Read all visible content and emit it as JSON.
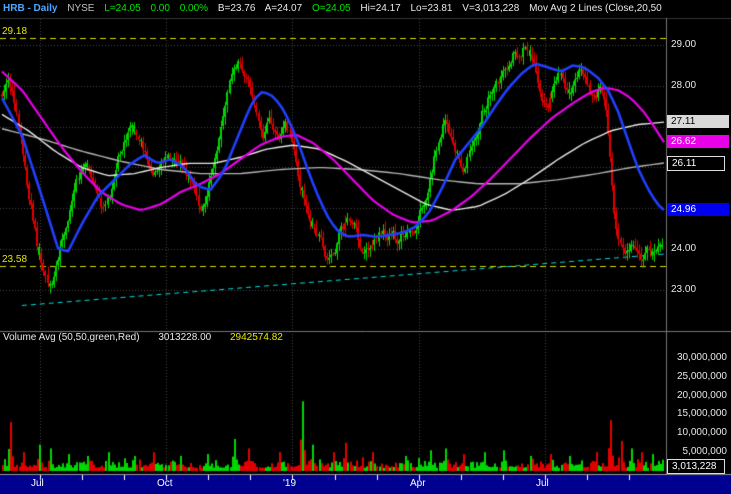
{
  "header": {
    "symbol": "HRB - Daily",
    "exchange": "NYSE",
    "last": "L=24.05",
    "change": "0.00",
    "change_pct": "0.00%",
    "bid": "B=23.76",
    "ask": "A=24.07",
    "open": "O=24.05",
    "high": "Hi=24.17",
    "low": "Lo=23.81",
    "volume": "V=3,013,228",
    "study": "Mov Avg 2 Lines (Close,20,50"
  },
  "colors": {
    "up": "#00d600",
    "down": "#e00000",
    "blue_ma": "#2040ff",
    "magenta_ma": "#e800e8",
    "white_ma_1": "#e8e8e8",
    "white_ma_2": "#b4b4b4",
    "level": "#d8d800",
    "trend": "#00dcdc",
    "grid": "#454545",
    "time_axis_bg": "#000090",
    "header_symbol": "#4da6ff",
    "header_green": "#00e600",
    "header_white": "#e8e8e8",
    "header_gray": "#c0c0c0",
    "yellow": "#e8e800"
  },
  "price_axis": {
    "tick_labels": [
      {
        "text": "29.00",
        "value": 29.0
      },
      {
        "text": "28.00",
        "value": 28.0
      },
      {
        "text": "24.00",
        "value": 24.0
      },
      {
        "text": "23.00",
        "value": 23.0
      }
    ],
    "badges": [
      {
        "name": "white-ma-1-value-badge",
        "text": "27.11",
        "value": 27.11,
        "style": "solid",
        "bg": "#d9d9d9",
        "fg": "#000000"
      },
      {
        "name": "magenta-ma-value-badge",
        "text": "26.62",
        "value": 26.62,
        "style": "solid",
        "bg": "#e800e8",
        "fg": "#ffffff"
      },
      {
        "name": "white-ma-2-value-badge",
        "text": "26.11",
        "value": 26.11,
        "style": "outline",
        "bg": "#000000",
        "fg": "#ffffff"
      },
      {
        "name": "blue-ma-value-badge",
        "text": "24.96",
        "value": 24.96,
        "style": "solid",
        "bg": "#0000f0",
        "fg": "#ffffff"
      }
    ]
  },
  "volume_axis": {
    "tick_labels": [
      {
        "text": "30,000,000",
        "value": 30000000
      },
      {
        "text": "25,000,000",
        "value": 25000000
      },
      {
        "text": "20,000,000",
        "value": 20000000
      },
      {
        "text": "15,000,000",
        "value": 15000000
      },
      {
        "text": "10,000,000",
        "value": 10000000
      },
      {
        "text": "5,000,000",
        "value": 5000000
      }
    ],
    "badge": {
      "text": "3,013,228",
      "value": 3013228
    }
  },
  "volume_header": {
    "name": "Volume Avg (50,50,green,Red)",
    "value1": "3013228.00",
    "value2": "2942574.82"
  },
  "time_axis": {
    "labels": [
      {
        "text": "Jul",
        "pos": 0.057
      },
      {
        "text": "Oct",
        "pos": 0.2479
      },
      {
        "text": "'19",
        "pos": 0.4387
      },
      {
        "text": "Apr",
        "pos": 0.6296
      },
      {
        "text": "Jul",
        "pos": 0.8204
      }
    ],
    "month_tick_positions": [
      0.057,
      0.1206,
      0.1842,
      0.2479,
      0.3115,
      0.3751,
      0.4387,
      0.5023,
      0.5659,
      0.6296,
      0.6932,
      0.7568,
      0.8204,
      0.884,
      0.9476
    ]
  },
  "chart_data": {
    "type": "candlestick",
    "symbol": "HRB",
    "timeframe": "Daily",
    "exchange": "NYSE",
    "bars": 320,
    "seed": 421,
    "last_close": 24.05,
    "price_range": [
      22.0,
      29.66
    ],
    "price_gridlines": [
      23,
      24,
      25,
      26,
      27,
      28,
      29
    ],
    "levels": {
      "resistance": {
        "label": "29.18",
        "value": 29.18
      },
      "support": {
        "label": "23.58",
        "value": 23.58
      }
    },
    "trendline": {
      "x1": 0.03,
      "y1": 22.62,
      "x2": 1.0,
      "y2": 23.88
    },
    "close_path": [
      [
        0.0,
        27.6
      ],
      [
        0.01,
        28.2
      ],
      [
        0.022,
        27.4
      ],
      [
        0.038,
        25.6
      ],
      [
        0.052,
        24.3
      ],
      [
        0.062,
        23.4
      ],
      [
        0.072,
        22.95
      ],
      [
        0.085,
        23.6
      ],
      [
        0.1,
        24.6
      ],
      [
        0.112,
        25.4
      ],
      [
        0.125,
        25.85
      ],
      [
        0.14,
        25.4
      ],
      [
        0.152,
        24.95
      ],
      [
        0.165,
        25.4
      ],
      [
        0.18,
        26.4
      ],
      [
        0.195,
        27.1
      ],
      [
        0.205,
        26.9
      ],
      [
        0.218,
        26.3
      ],
      [
        0.23,
        26.0
      ],
      [
        0.245,
        26.3
      ],
      [
        0.26,
        26.4
      ],
      [
        0.272,
        26.1
      ],
      [
        0.285,
        25.6
      ],
      [
        0.3,
        25.1
      ],
      [
        0.312,
        25.6
      ],
      [
        0.325,
        26.6
      ],
      [
        0.34,
        27.6
      ],
      [
        0.352,
        28.3
      ],
      [
        0.362,
        28.6
      ],
      [
        0.372,
        28.1
      ],
      [
        0.382,
        27.4
      ],
      [
        0.395,
        26.9
      ],
      [
        0.405,
        27.1
      ],
      [
        0.418,
        26.7
      ],
      [
        0.43,
        26.9
      ],
      [
        0.442,
        26.4
      ],
      [
        0.452,
        25.6
      ],
      [
        0.462,
        24.9
      ],
      [
        0.475,
        24.3
      ],
      [
        0.488,
        23.9
      ],
      [
        0.5,
        23.7
      ],
      [
        0.512,
        24.3
      ],
      [
        0.525,
        24.6
      ],
      [
        0.538,
        24.2
      ],
      [
        0.55,
        23.7
      ],
      [
        0.562,
        24.1
      ],
      [
        0.575,
        24.5
      ],
      [
        0.588,
        24.4
      ],
      [
        0.6,
        24.3
      ],
      [
        0.615,
        24.6
      ],
      [
        0.63,
        24.9
      ],
      [
        0.642,
        25.5
      ],
      [
        0.652,
        26.2
      ],
      [
        0.662,
        26.9
      ],
      [
        0.672,
        27.4
      ],
      [
        0.682,
        26.9
      ],
      [
        0.692,
        26.4
      ],
      [
        0.702,
        26.1
      ],
      [
        0.715,
        26.7
      ],
      [
        0.728,
        27.3
      ],
      [
        0.74,
        27.9
      ],
      [
        0.752,
        28.1
      ],
      [
        0.762,
        28.4
      ],
      [
        0.775,
        28.95
      ],
      [
        0.785,
        28.6
      ],
      [
        0.795,
        28.95
      ],
      [
        0.805,
        28.5
      ],
      [
        0.815,
        28.1
      ],
      [
        0.825,
        27.7
      ],
      [
        0.835,
        28.0
      ],
      [
        0.845,
        28.25
      ],
      [
        0.855,
        27.85
      ],
      [
        0.865,
        28.1
      ],
      [
        0.875,
        28.35
      ],
      [
        0.885,
        28.05
      ],
      [
        0.895,
        27.75
      ],
      [
        0.905,
        28.0
      ],
      [
        0.915,
        27.5
      ],
      [
        0.922,
        26.3
      ],
      [
        0.93,
        24.8
      ],
      [
        0.938,
        24.2
      ],
      [
        0.946,
        24.0
      ],
      [
        0.954,
        24.3
      ],
      [
        0.962,
        24.1
      ],
      [
        0.97,
        23.85
      ],
      [
        0.978,
        24.15
      ],
      [
        0.988,
        23.95
      ],
      [
        1.0,
        24.05
      ]
    ],
    "ma_series": [
      {
        "name": "white-ma-slow",
        "color": "#b4b4b4",
        "width": 1.4,
        "end_value": 26.11,
        "path": [
          [
            0.0,
            26.95
          ],
          [
            0.06,
            26.7
          ],
          [
            0.12,
            26.4
          ],
          [
            0.18,
            26.15
          ],
          [
            0.24,
            25.95
          ],
          [
            0.3,
            25.85
          ],
          [
            0.36,
            25.85
          ],
          [
            0.42,
            25.95
          ],
          [
            0.48,
            26.0
          ],
          [
            0.54,
            25.95
          ],
          [
            0.6,
            25.85
          ],
          [
            0.66,
            25.7
          ],
          [
            0.72,
            25.6
          ],
          [
            0.78,
            25.6
          ],
          [
            0.84,
            25.7
          ],
          [
            0.9,
            25.85
          ],
          [
            0.95,
            26.0
          ],
          [
            1.0,
            26.11
          ]
        ]
      },
      {
        "name": "white-ma-fast",
        "color": "#e8e8e8",
        "width": 1.4,
        "end_value": 27.11,
        "path": [
          [
            0.0,
            27.3
          ],
          [
            0.04,
            26.9
          ],
          [
            0.08,
            26.4
          ],
          [
            0.12,
            26.0
          ],
          [
            0.16,
            25.8
          ],
          [
            0.2,
            25.85
          ],
          [
            0.24,
            26.0
          ],
          [
            0.28,
            26.1
          ],
          [
            0.32,
            26.1
          ],
          [
            0.36,
            26.25
          ],
          [
            0.4,
            26.45
          ],
          [
            0.44,
            26.55
          ],
          [
            0.48,
            26.45
          ],
          [
            0.52,
            26.15
          ],
          [
            0.56,
            25.8
          ],
          [
            0.6,
            25.45
          ],
          [
            0.64,
            25.1
          ],
          [
            0.68,
            24.95
          ],
          [
            0.72,
            25.05
          ],
          [
            0.76,
            25.35
          ],
          [
            0.8,
            25.75
          ],
          [
            0.84,
            26.2
          ],
          [
            0.88,
            26.6
          ],
          [
            0.92,
            26.9
          ],
          [
            0.96,
            27.05
          ],
          [
            1.0,
            27.11
          ]
        ]
      },
      {
        "name": "magenta-ma",
        "color": "#e800e8",
        "width": 2.2,
        "end_value": 26.62,
        "path": [
          [
            0.0,
            28.35
          ],
          [
            0.03,
            27.9
          ],
          [
            0.06,
            27.2
          ],
          [
            0.09,
            26.5
          ],
          [
            0.12,
            25.9
          ],
          [
            0.15,
            25.4
          ],
          [
            0.18,
            25.1
          ],
          [
            0.21,
            24.95
          ],
          [
            0.24,
            25.1
          ],
          [
            0.27,
            25.4
          ],
          [
            0.3,
            25.6
          ],
          [
            0.33,
            25.85
          ],
          [
            0.36,
            26.2
          ],
          [
            0.39,
            26.55
          ],
          [
            0.42,
            26.75
          ],
          [
            0.445,
            26.8
          ],
          [
            0.47,
            26.6
          ],
          [
            0.5,
            26.2
          ],
          [
            0.53,
            25.7
          ],
          [
            0.56,
            25.2
          ],
          [
            0.59,
            24.85
          ],
          [
            0.62,
            24.65
          ],
          [
            0.65,
            24.7
          ],
          [
            0.68,
            24.95
          ],
          [
            0.71,
            25.3
          ],
          [
            0.74,
            25.75
          ],
          [
            0.77,
            26.25
          ],
          [
            0.8,
            26.75
          ],
          [
            0.83,
            27.2
          ],
          [
            0.86,
            27.55
          ],
          [
            0.89,
            27.85
          ],
          [
            0.91,
            27.95
          ],
          [
            0.93,
            27.9
          ],
          [
            0.95,
            27.7
          ],
          [
            0.97,
            27.35
          ],
          [
            0.985,
            27.0
          ],
          [
            1.0,
            26.62
          ]
        ]
      },
      {
        "name": "blue-ma",
        "color": "#2040ff",
        "width": 2.6,
        "end_value": 24.96,
        "path": [
          [
            0.0,
            27.7
          ],
          [
            0.03,
            26.8
          ],
          [
            0.06,
            25.3
          ],
          [
            0.085,
            24.0
          ],
          [
            0.1,
            23.95
          ],
          [
            0.12,
            24.6
          ],
          [
            0.145,
            25.3
          ],
          [
            0.17,
            25.7
          ],
          [
            0.195,
            26.1
          ],
          [
            0.215,
            26.3
          ],
          [
            0.235,
            26.1
          ],
          [
            0.255,
            26.2
          ],
          [
            0.275,
            26.0
          ],
          [
            0.295,
            25.55
          ],
          [
            0.315,
            25.45
          ],
          [
            0.335,
            25.9
          ],
          [
            0.355,
            26.7
          ],
          [
            0.375,
            27.5
          ],
          [
            0.39,
            27.85
          ],
          [
            0.405,
            27.8
          ],
          [
            0.42,
            27.55
          ],
          [
            0.435,
            27.1
          ],
          [
            0.45,
            26.5
          ],
          [
            0.465,
            25.8
          ],
          [
            0.48,
            25.2
          ],
          [
            0.495,
            24.7
          ],
          [
            0.51,
            24.4
          ],
          [
            0.525,
            24.3
          ],
          [
            0.545,
            24.35
          ],
          [
            0.565,
            24.3
          ],
          [
            0.585,
            24.35
          ],
          [
            0.605,
            24.4
          ],
          [
            0.625,
            24.55
          ],
          [
            0.645,
            24.9
          ],
          [
            0.665,
            25.5
          ],
          [
            0.685,
            26.2
          ],
          [
            0.705,
            26.6
          ],
          [
            0.725,
            27.0
          ],
          [
            0.745,
            27.5
          ],
          [
            0.765,
            27.95
          ],
          [
            0.785,
            28.3
          ],
          [
            0.805,
            28.55
          ],
          [
            0.825,
            28.45
          ],
          [
            0.845,
            28.35
          ],
          [
            0.862,
            28.5
          ],
          [
            0.88,
            28.45
          ],
          [
            0.9,
            28.2
          ],
          [
            0.915,
            27.9
          ],
          [
            0.93,
            27.4
          ],
          [
            0.945,
            26.7
          ],
          [
            0.96,
            26.0
          ],
          [
            0.975,
            25.5
          ],
          [
            0.99,
            25.1
          ],
          [
            1.0,
            24.96
          ]
        ]
      }
    ],
    "volume": {
      "unit": "shares",
      "base_millions": 2.4,
      "axis_max": 30000000,
      "axis_step": 5000000,
      "last_volume": 3013228,
      "avg_green": 3013228.0,
      "avg_red": 2942574.82,
      "spikes": [
        [
          0.012,
          13,
          "down"
        ],
        [
          0.03,
          5,
          "down"
        ],
        [
          0.055,
          7,
          "up"
        ],
        [
          0.072,
          6,
          "up"
        ],
        [
          0.1,
          4.5,
          "up"
        ],
        [
          0.13,
          4,
          "up"
        ],
        [
          0.16,
          5,
          "up"
        ],
        [
          0.2,
          4,
          "up"
        ],
        [
          0.23,
          5,
          "down"
        ],
        [
          0.27,
          4,
          "up"
        ],
        [
          0.31,
          4.5,
          "up"
        ],
        [
          0.35,
          8.5,
          "up"
        ],
        [
          0.372,
          6,
          "down"
        ],
        [
          0.42,
          5,
          "down"
        ],
        [
          0.455,
          18.5,
          "up"
        ],
        [
          0.47,
          7,
          "up"
        ],
        [
          0.5,
          5,
          "down"
        ],
        [
          0.52,
          7.5,
          "down"
        ],
        [
          0.56,
          5,
          "down"
        ],
        [
          0.61,
          4,
          "up"
        ],
        [
          0.65,
          5.5,
          "up"
        ],
        [
          0.672,
          6,
          "up"
        ],
        [
          0.7,
          4.5,
          "down"
        ],
        [
          0.73,
          5,
          "up"
        ],
        [
          0.76,
          5.5,
          "up"
        ],
        [
          0.8,
          4,
          "up"
        ],
        [
          0.83,
          4.5,
          "down"
        ],
        [
          0.86,
          4,
          "up"
        ],
        [
          0.9,
          5,
          "down"
        ],
        [
          0.922,
          13.5,
          "down"
        ],
        [
          0.938,
          8,
          "down"
        ],
        [
          0.952,
          6,
          "up"
        ],
        [
          0.968,
          5,
          "down"
        ],
        [
          0.985,
          4.5,
          "up"
        ],
        [
          1.0,
          3.0,
          "up"
        ]
      ]
    }
  }
}
